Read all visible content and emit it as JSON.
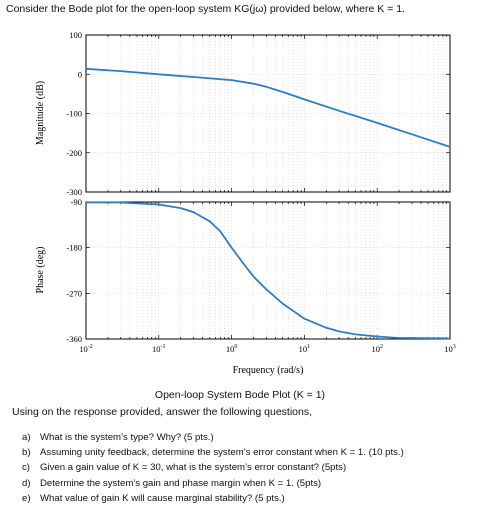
{
  "intro_text": "Consider the Bode plot for the open-loop system KG(jω) provided below, where K = 1.",
  "caption": "Open-loop System Bode Plot (K = 1)",
  "lead_text": "Using on the response provided, answer the following questions,",
  "questions": [
    {
      "marker": "a)",
      "text": "What is the system’s type? Why? (5 pts.)"
    },
    {
      "marker": "b)",
      "text": "Assuming unity feedback, determine the system’s error constant when K = 1. (10 pts.)"
    },
    {
      "marker": "c)",
      "text": "Given a gain value of K = 30, what is the system’s error constant? (5pts)"
    },
    {
      "marker": "d)",
      "text": "Determine the system’s gain and phase margin when K = 1. (5pts)"
    },
    {
      "marker": "e)",
      "text": "What value of gain K will cause marginal stability? (5 pts.)"
    }
  ],
  "colors": {
    "curve": "#2e7ebd",
    "axis": "#000000",
    "grid": "#c8c8c8"
  },
  "chart_data": [
    {
      "type": "line",
      "panel": "magnitude",
      "ylabel": "Magnitude (dB)",
      "xlabel": "",
      "xscale": "log",
      "xlim": [
        0.01,
        1000
      ],
      "ylim": [
        -300,
        100
      ],
      "yticks": [
        100,
        0,
        -100,
        -200,
        -300
      ],
      "grid": true,
      "series": [
        {
          "x": [
            0.01,
            0.03,
            0.1,
            0.3,
            1,
            2,
            3,
            5,
            10,
            30,
            100,
            300,
            1000
          ],
          "y": [
            14,
            8,
            0,
            -7,
            -15,
            -24,
            -32,
            -45,
            -64,
            -93,
            -124,
            -153,
            -185
          ]
        }
      ]
    },
    {
      "type": "line",
      "panel": "phase",
      "ylabel": "Phase (deg)",
      "xlabel": "Frequency (rad/s)",
      "xscale": "log",
      "xlim": [
        0.01,
        1000
      ],
      "ylim": [
        -360,
        -90
      ],
      "yticks": [
        -90,
        -180,
        -270,
        -360
      ],
      "xtick_labels": [
        "10-2",
        "10-1",
        "100",
        "101",
        "102",
        "103"
      ],
      "grid": true,
      "series": [
        {
          "x": [
            0.01,
            0.03,
            0.1,
            0.2,
            0.3,
            0.5,
            0.7,
            1,
            1.5,
            2,
            3,
            5,
            10,
            20,
            30,
            50,
            100,
            200,
            300,
            1000
          ],
          "y": [
            -91,
            -91,
            -95,
            -102,
            -110,
            -128,
            -148,
            -180,
            -214,
            -237,
            -262,
            -290,
            -320,
            -338,
            -345,
            -351,
            -355,
            -358,
            -358,
            -359
          ]
        }
      ]
    }
  ]
}
